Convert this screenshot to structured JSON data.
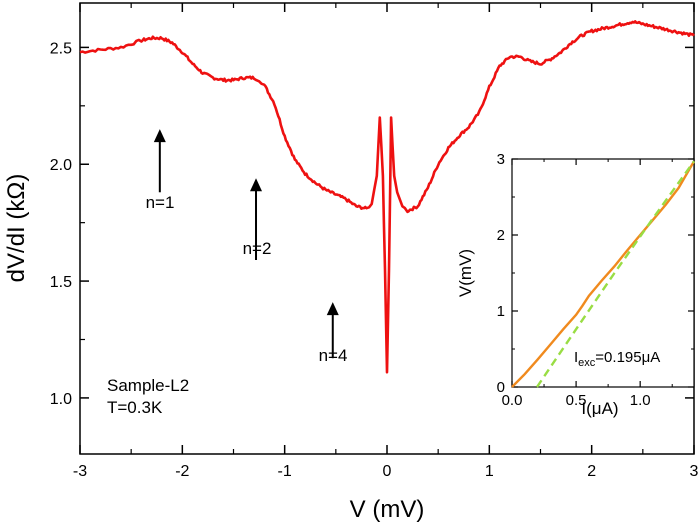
{
  "chart_data": [
    {
      "type": "line",
      "xlabel": "V (mV)",
      "ylabel": "dV/dI (kΩ)",
      "xlim": [
        -3,
        3
      ],
      "ylim": [
        0.76,
        2.69
      ],
      "xticks": [
        -3,
        -2,
        -1,
        0,
        1,
        2,
        3
      ],
      "xtick_labels": [
        "-3",
        "-2",
        "-1",
        "0",
        "1",
        "2",
        "3"
      ],
      "yticks": [
        1.0,
        1.5,
        2.0,
        2.5
      ],
      "ytick_labels": [
        "1.0",
        "1.5",
        "2.0",
        "2.5"
      ],
      "grid": false,
      "series": [
        {
          "color": "#ee1111",
          "x": [
            -3.0,
            -2.8,
            -2.6,
            -2.4,
            -2.3,
            -2.2,
            -2.1,
            -2.0,
            -1.9,
            -1.8,
            -1.7,
            -1.6,
            -1.5,
            -1.4,
            -1.3,
            -1.25,
            -1.2,
            -1.1,
            -1.0,
            -0.9,
            -0.8,
            -0.7,
            -0.6,
            -0.5,
            -0.4,
            -0.3,
            -0.2,
            -0.15,
            -0.1,
            -0.07,
            -0.04,
            -0.02,
            0.0,
            0.02,
            0.04,
            0.07,
            0.1,
            0.15,
            0.2,
            0.3,
            0.4,
            0.5,
            0.6,
            0.7,
            0.8,
            0.9,
            1.0,
            1.1,
            1.2,
            1.3,
            1.4,
            1.5,
            1.6,
            1.7,
            1.8,
            1.9,
            2.0,
            2.1,
            2.2,
            2.3,
            2.4,
            2.5,
            2.6,
            2.7,
            2.8,
            2.9,
            3.0
          ],
          "y": [
            2.48,
            2.49,
            2.5,
            2.53,
            2.54,
            2.54,
            2.52,
            2.48,
            2.43,
            2.39,
            2.37,
            2.36,
            2.36,
            2.37,
            2.37,
            2.36,
            2.34,
            2.26,
            2.12,
            2.02,
            1.96,
            1.92,
            1.89,
            1.87,
            1.85,
            1.82,
            1.81,
            1.83,
            1.95,
            2.2,
            1.95,
            1.55,
            1.11,
            1.55,
            2.2,
            1.95,
            1.88,
            1.82,
            1.8,
            1.82,
            1.9,
            2.0,
            2.07,
            2.12,
            2.16,
            2.22,
            2.33,
            2.42,
            2.46,
            2.46,
            2.44,
            2.43,
            2.45,
            2.48,
            2.52,
            2.55,
            2.57,
            2.58,
            2.59,
            2.6,
            2.61,
            2.6,
            2.59,
            2.58,
            2.57,
            2.56,
            2.55
          ]
        }
      ],
      "annotations": [
        {
          "text": "n=1",
          "x": -2.22,
          "y": 1.82
        },
        {
          "text": "n=2",
          "x": -1.28,
          "y": 1.53
        },
        {
          "text": "n=4",
          "x": -0.53,
          "y": 1.12
        },
        {
          "text": "Sample-L2",
          "x": -2.78,
          "y": 1.04
        },
        {
          "text": "T=0.3K",
          "x": -2.78,
          "y": 0.96
        }
      ],
      "arrows": [
        {
          "x": -2.22,
          "y_from": 1.88,
          "y_to": 2.15
        },
        {
          "x": -1.28,
          "y_from": 1.59,
          "y_to": 1.94
        },
        {
          "x": -0.53,
          "y_from": 1.17,
          "y_to": 1.41
        }
      ]
    },
    {
      "type": "line",
      "inset": true,
      "xlabel": "I(μA)",
      "ylabel": "V(mV)",
      "xlim": [
        0,
        1.42
      ],
      "ylim": [
        0,
        3
      ],
      "xticks": [
        0,
        0.5,
        1.0
      ],
      "xtick_labels": [
        "0.0",
        "0.5",
        "1.0"
      ],
      "yticks": [
        0,
        1,
        2,
        3
      ],
      "ytick_labels": [
        "0",
        "1",
        "2",
        "3"
      ],
      "series": [
        {
          "color": "#f08a1e",
          "x": [
            0,
            0.1,
            0.2,
            0.3,
            0.4,
            0.5,
            0.55,
            0.6,
            0.7,
            0.8,
            0.9,
            1.0,
            1.1,
            1.2,
            1.3,
            1.42
          ],
          "y": [
            0,
            0.17,
            0.36,
            0.56,
            0.76,
            0.95,
            1.07,
            1.2,
            1.4,
            1.59,
            1.8,
            2.0,
            2.2,
            2.4,
            2.62,
            2.97
          ]
        },
        {
          "color": "#99dd44",
          "dashed": true,
          "x": [
            0.195,
            0.5,
            0.8,
            1.1,
            1.42
          ],
          "y": [
            0,
            0.76,
            1.5,
            2.22,
            2.97
          ]
        }
      ],
      "annotations": [
        {
          "text": "I",
          "sub": "exc",
          "tail": "=0.195μA"
        }
      ]
    }
  ]
}
